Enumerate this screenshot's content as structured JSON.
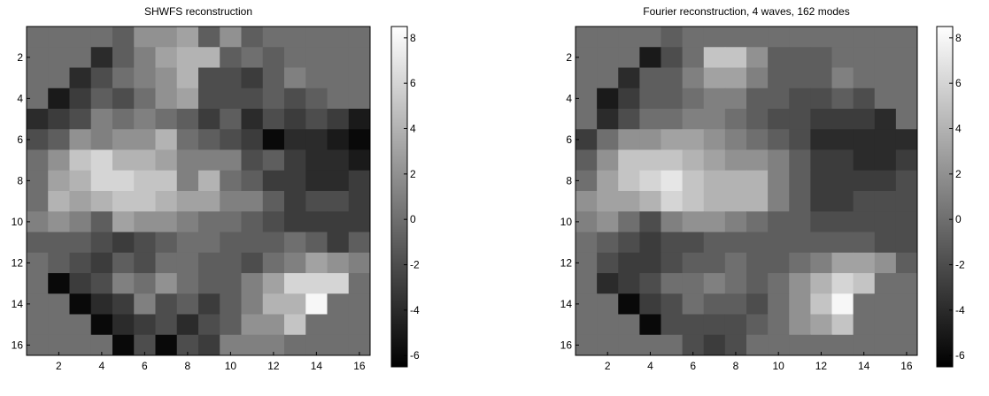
{
  "chart_data": [
    {
      "type": "heatmap",
      "title": "SHWFS reconstruction",
      "colormap": "gray",
      "xlim": [
        0.5,
        16.5
      ],
      "ylim": [
        16.5,
        0.5
      ],
      "xticks": [
        2,
        4,
        6,
        8,
        10,
        12,
        14,
        16
      ],
      "yticks": [
        2,
        4,
        6,
        8,
        10,
        12,
        14,
        16
      ],
      "clim": [
        -6.5,
        8.5
      ],
      "cticks": [
        -6,
        -4,
        -2,
        0,
        2,
        4,
        6,
        8
      ],
      "values": [
        [
          0,
          0,
          0,
          0,
          -1,
          2,
          2,
          3,
          -1,
          2,
          -1,
          0,
          0,
          0,
          0,
          0
        ],
        [
          0,
          0,
          0,
          -4,
          -1,
          1,
          3,
          4,
          4,
          -1,
          0,
          -1,
          0,
          0,
          0,
          0
        ],
        [
          0,
          0,
          -4,
          -2,
          0,
          1,
          2,
          4,
          -2,
          -2,
          -3,
          -1,
          1,
          0,
          0,
          0
        ],
        [
          0,
          -5,
          -3,
          -1,
          -2,
          0,
          2,
          3,
          -2,
          -2,
          -2,
          -1,
          -2,
          -1,
          0,
          0
        ],
        [
          -4,
          -3,
          -2,
          1,
          0,
          1,
          0,
          -1,
          -3,
          -1,
          -4,
          -2,
          -3,
          -2,
          -3,
          -5
        ],
        [
          -2,
          -1,
          2,
          1,
          2,
          2,
          4,
          0,
          -1,
          -2,
          -3,
          -6,
          -4,
          -4,
          -5,
          -6
        ],
        [
          0,
          2,
          5,
          6,
          4,
          4,
          3,
          1,
          1,
          1,
          -2,
          -1,
          -3,
          -4,
          -4,
          -5
        ],
        [
          0,
          3,
          4,
          6,
          6,
          5,
          5,
          1,
          4,
          0,
          -1,
          -3,
          -3,
          -4,
          -4,
          -3
        ],
        [
          0,
          4,
          3,
          4,
          5,
          5,
          4,
          3,
          3,
          1,
          1,
          -1,
          -3,
          -2,
          -2,
          -3
        ],
        [
          1,
          2,
          1,
          -1,
          3,
          2,
          2,
          1,
          0,
          0,
          -1,
          -2,
          -3,
          -3,
          -3,
          -3
        ],
        [
          -1,
          -1,
          -1,
          -2,
          -3,
          -2,
          -1,
          0,
          0,
          -1,
          -1,
          -1,
          0,
          -1,
          -3,
          -1
        ],
        [
          0,
          -1,
          -2,
          -3,
          -1,
          -2,
          0,
          0,
          -1,
          -1,
          -2,
          0,
          1,
          3,
          2,
          1
        ],
        [
          0,
          -6,
          -3,
          -2,
          1,
          0,
          2,
          0,
          -1,
          -1,
          1,
          3,
          6,
          6,
          6,
          0
        ],
        [
          0,
          0,
          -6,
          -4,
          -3,
          1,
          -2,
          -1,
          -3,
          -1,
          1,
          4,
          4,
          8,
          0,
          0
        ],
        [
          0,
          0,
          0,
          -6,
          -4,
          -3,
          -2,
          -4,
          -2,
          -1,
          2,
          2,
          5,
          0,
          0,
          0
        ],
        [
          0,
          0,
          0,
          0,
          -6,
          -2,
          -6,
          -2,
          -3,
          1,
          1,
          1,
          0,
          0,
          0,
          0
        ]
      ]
    },
    {
      "type": "heatmap",
      "title": "Fourier reconstruction, 4 waves, 162 modes",
      "colormap": "gray",
      "xlim": [
        0.5,
        16.5
      ],
      "ylim": [
        16.5,
        0.5
      ],
      "xticks": [
        2,
        4,
        6,
        8,
        10,
        12,
        14,
        16
      ],
      "yticks": [
        2,
        4,
        6,
        8,
        10,
        12,
        14,
        16
      ],
      "clim": [
        -6.5,
        8.5
      ],
      "cticks": [
        -6,
        -4,
        -2,
        0,
        2,
        4,
        6,
        8
      ],
      "values": [
        [
          0,
          0,
          0,
          0,
          -1,
          0,
          0,
          0,
          0,
          0,
          0,
          0,
          0,
          0,
          0,
          0
        ],
        [
          0,
          0,
          0,
          -5,
          -2,
          0,
          5,
          5,
          2,
          -1,
          -1,
          -1,
          0,
          0,
          0,
          0
        ],
        [
          0,
          0,
          -4,
          -1,
          -1,
          1,
          3,
          3,
          1,
          -1,
          -1,
          -1,
          1,
          0,
          0,
          0
        ],
        [
          0,
          -5,
          -3,
          -1,
          -1,
          0,
          1,
          1,
          -1,
          -1,
          -2,
          -2,
          -1,
          -2,
          0,
          0
        ],
        [
          0,
          -4,
          -2,
          0,
          0,
          1,
          1,
          0,
          -1,
          -2,
          -2,
          -3,
          -3,
          -3,
          -4,
          0
        ],
        [
          -3,
          0,
          2,
          2,
          3,
          3,
          2,
          1,
          0,
          -1,
          -2,
          -4,
          -4,
          -4,
          -4,
          -4
        ],
        [
          -1,
          2,
          5,
          5,
          5,
          4,
          3,
          2,
          2,
          1,
          -1,
          -3,
          -3,
          -4,
          -4,
          -3
        ],
        [
          0,
          3,
          5,
          6,
          7,
          5,
          4,
          4,
          4,
          1,
          -1,
          -3,
          -3,
          -3,
          -3,
          -2
        ],
        [
          2,
          3,
          3,
          4,
          6,
          5,
          4,
          4,
          4,
          1,
          -1,
          -3,
          -3,
          -2,
          -2,
          -2
        ],
        [
          1,
          2,
          0,
          -2,
          1,
          2,
          2,
          1,
          0,
          -1,
          -1,
          -2,
          -2,
          -2,
          -2,
          -2
        ],
        [
          0,
          -1,
          -2,
          -3,
          -2,
          -2,
          -1,
          -1,
          -1,
          -1,
          -1,
          -1,
          -1,
          -1,
          -2,
          -2
        ],
        [
          0,
          -2,
          -3,
          -3,
          -2,
          -1,
          -1,
          0,
          -1,
          -1,
          0,
          1,
          3,
          3,
          2,
          -1
        ],
        [
          0,
          -4,
          -3,
          -2,
          0,
          0,
          1,
          0,
          -1,
          0,
          2,
          4,
          6,
          5,
          0,
          0
        ],
        [
          0,
          0,
          -6,
          -3,
          -2,
          0,
          -1,
          -1,
          -2,
          0,
          2,
          5,
          8,
          0,
          0,
          0
        ],
        [
          0,
          0,
          0,
          -6,
          -2,
          -2,
          -2,
          -2,
          -1,
          0,
          2,
          3,
          5,
          0,
          0,
          0
        ],
        [
          0,
          0,
          0,
          0,
          0,
          -2,
          -3,
          -2,
          0,
          0,
          0,
          0,
          0,
          0,
          0,
          0
        ]
      ]
    }
  ]
}
